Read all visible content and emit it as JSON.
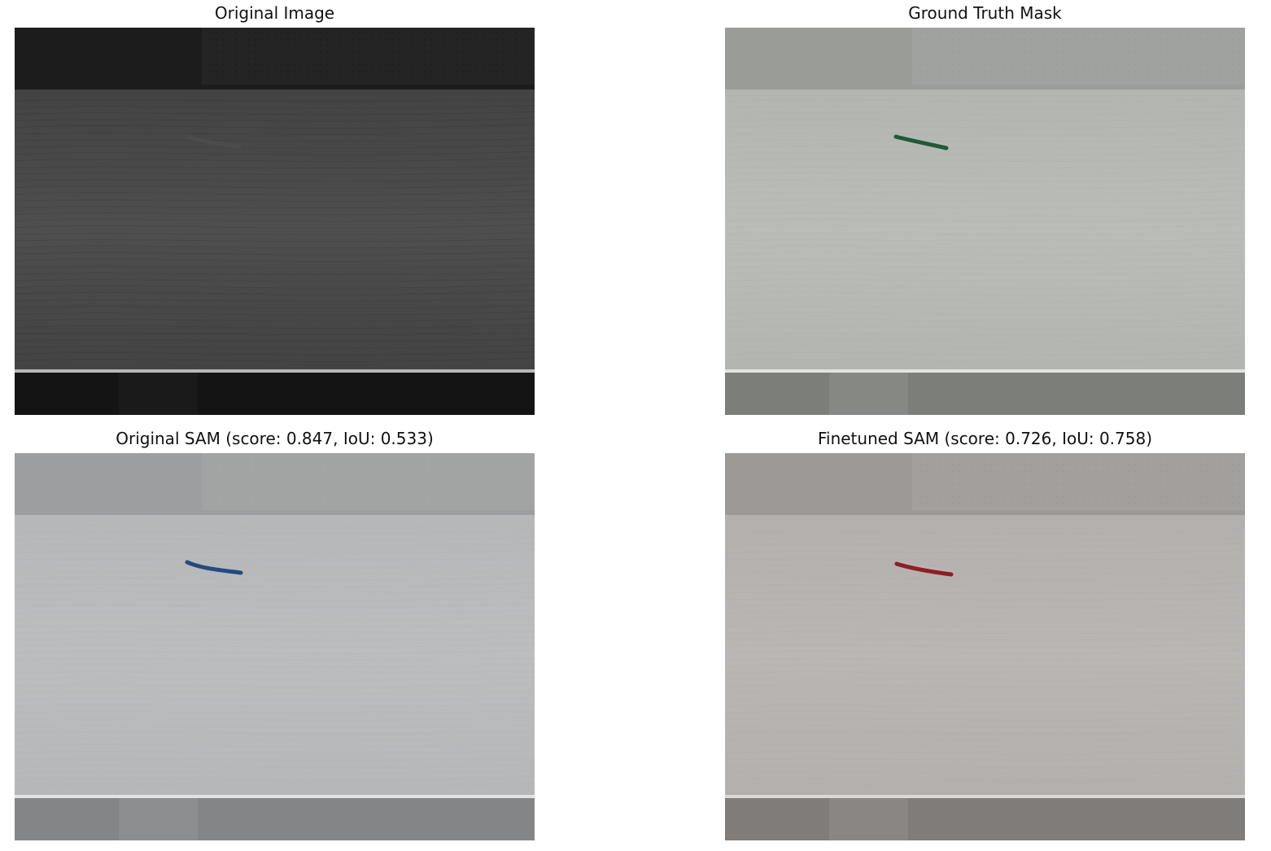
{
  "figure": {
    "panels": [
      {
        "id": "original",
        "title": "Original Image",
        "mask_color": null,
        "tint": {
          "top": "#1c1c1c",
          "board": "#434343",
          "board_light": "#4e4e4e",
          "stripe": "#b8b8b8",
          "bottom": "#141414",
          "top_band": "#2a2a2a"
        }
      },
      {
        "id": "ground-truth",
        "title": "Ground Truth Mask",
        "mask_color": "#1f5a36",
        "tint": {
          "top": "#9a9c98",
          "board": "#b3b5b1",
          "board_light": "#babcb8",
          "stripe": "#e2e4e0",
          "bottom": "#7c7e7a",
          "top_band": "#a4a6a2"
        }
      },
      {
        "id": "original-sam",
        "title": "Original SAM (score: 0.847, IoU: 0.533)",
        "mask_color": "#254a82",
        "tint": {
          "top": "#9c9e9f",
          "board": "#b5b7b8",
          "board_light": "#bbbdbe",
          "stripe": "#e0e2e3",
          "bottom": "#838586",
          "top_band": "#a6a8a9"
        }
      },
      {
        "id": "finetuned-sam",
        "title": "Finetuned SAM (score: 0.726, IoU: 0.758)",
        "mask_color": "#8e1d26",
        "tint": {
          "top": "#9d9997",
          "board": "#b4b0ad",
          "board_light": "#bab6b3",
          "stripe": "#dcd8d5",
          "bottom": "#807c7a",
          "top_band": "#a7a3a0"
        }
      }
    ]
  }
}
